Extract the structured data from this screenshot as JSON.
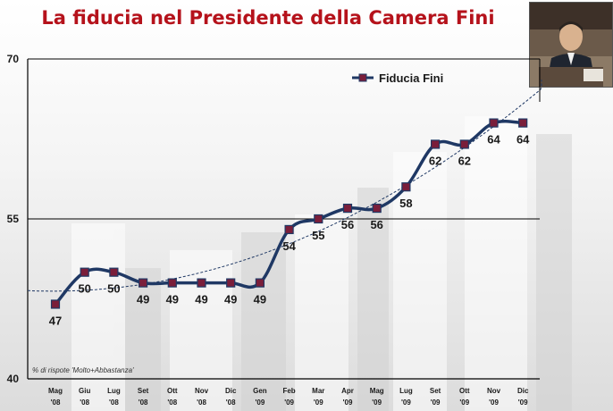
{
  "title": "La fiducia nel Presidente della Camera Fini",
  "note": "% di rispote 'Molto+Abbastanza'",
  "chart_data": {
    "type": "line",
    "categories": [
      [
        "Mag",
        "'08"
      ],
      [
        "Giu",
        "'08"
      ],
      [
        "Lug",
        "'08"
      ],
      [
        "Set",
        "'08"
      ],
      [
        "Ott",
        "'08"
      ],
      [
        "Nov",
        "'08"
      ],
      [
        "Dic",
        "'08"
      ],
      [
        "Gen",
        "'09"
      ],
      [
        "Feb",
        "'09"
      ],
      [
        "Mar",
        "'09"
      ],
      [
        "Apr",
        "'09"
      ],
      [
        "Mag",
        "'09"
      ],
      [
        "Lug",
        "'09"
      ],
      [
        "Set",
        "'09"
      ],
      [
        "Ott",
        "'09"
      ],
      [
        "Nov",
        "'09"
      ],
      [
        "Dic",
        "'09"
      ]
    ],
    "series": [
      {
        "name": "Fiducia Fini",
        "values": [
          47,
          50,
          50,
          49,
          49,
          49,
          49,
          49,
          54,
          55,
          56,
          56,
          58,
          62,
          62,
          64,
          64
        ],
        "color": "#1f3864",
        "marker_color": "#7a1e3a"
      }
    ],
    "trendline": true,
    "yticks": [
      40,
      55,
      70
    ],
    "ylim": [
      40,
      70
    ],
    "grid": "horizontal",
    "legend": "top-right",
    "title": "La fiducia nel Presidente della Camera Fini"
  }
}
